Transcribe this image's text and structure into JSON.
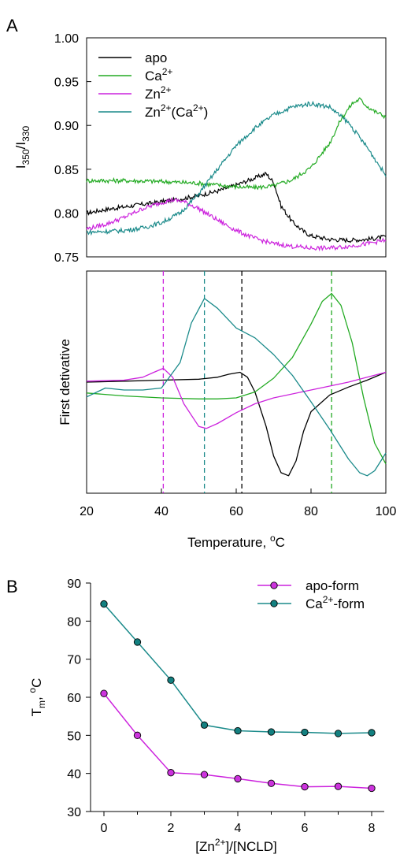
{
  "chart_data": [
    {
      "panel_label": "A",
      "type": "line",
      "ylabel": {
        "main": "I",
        "sub1": "350",
        "sep": "/I",
        "sub2": "330"
      },
      "ylim": [
        0.75,
        1.0
      ],
      "yticks": [
        "1.00",
        "0.95",
        "0.90",
        "0.85",
        "0.80",
        "0.75"
      ],
      "xlim": [
        20,
        100
      ],
      "legend_position": "top-left",
      "series": [
        {
          "name": "apo",
          "name_sup": "",
          "name_suffix": "",
          "color": "#000000",
          "x": [
            20,
            25,
            30,
            35,
            40,
            45,
            50,
            55,
            60,
            65,
            68,
            70,
            72,
            75,
            78,
            80,
            85,
            90,
            95,
            100
          ],
          "y": [
            0.8,
            0.804,
            0.807,
            0.81,
            0.813,
            0.816,
            0.82,
            0.825,
            0.832,
            0.84,
            0.845,
            0.835,
            0.808,
            0.79,
            0.779,
            0.774,
            0.77,
            0.769,
            0.77,
            0.773
          ]
        },
        {
          "name": "Ca",
          "name_sup": "2+",
          "name_suffix": "",
          "color": "#22aa22",
          "x": [
            20,
            30,
            40,
            50,
            60,
            65,
            70,
            75,
            80,
            85,
            88,
            91,
            93,
            95,
            97,
            100
          ],
          "y": [
            0.837,
            0.837,
            0.836,
            0.834,
            0.83,
            0.829,
            0.831,
            0.838,
            0.852,
            0.88,
            0.907,
            0.925,
            0.93,
            0.922,
            0.916,
            0.91
          ]
        },
        {
          "name": "Zn",
          "name_sup": "2+",
          "name_suffix": "",
          "color": "#cc22dd",
          "x": [
            20,
            25,
            30,
            35,
            40,
            43,
            46,
            50,
            55,
            60,
            65,
            70,
            75,
            80,
            85,
            90,
            95,
            100
          ],
          "y": [
            0.782,
            0.787,
            0.795,
            0.805,
            0.812,
            0.815,
            0.813,
            0.805,
            0.792,
            0.78,
            0.771,
            0.765,
            0.762,
            0.76,
            0.76,
            0.762,
            0.765,
            0.769
          ]
        },
        {
          "name": "Zn",
          "name_sup": "2+",
          "name_suffix": "(Ca",
          "name_sup2": "2+",
          "name_end": ")",
          "color": "#1a8a8a",
          "x": [
            20,
            25,
            30,
            35,
            40,
            45,
            50,
            55,
            60,
            65,
            70,
            75,
            80,
            85,
            90,
            95,
            100
          ],
          "y": [
            0.778,
            0.779,
            0.78,
            0.783,
            0.789,
            0.8,
            0.822,
            0.85,
            0.877,
            0.897,
            0.912,
            0.921,
            0.925,
            0.921,
            0.903,
            0.875,
            0.843
          ]
        }
      ]
    },
    {
      "panel_label": "",
      "type": "line",
      "ylabel": "First detivative",
      "xlabel_main": "Temperature, ",
      "xlabel_sup": "o",
      "xlabel_unit": "C",
      "xlim": [
        20,
        100
      ],
      "xticks": [
        "20",
        "40",
        "60",
        "80",
        "100"
      ],
      "ylim": [
        -1.0,
        1.0
      ],
      "vlines": [
        {
          "x": 40.5,
          "color": "#cc22dd"
        },
        {
          "x": 51.5,
          "color": "#1a8a8a"
        },
        {
          "x": 61.5,
          "color": "#000000"
        },
        {
          "x": 85.5,
          "color": "#22aa22"
        }
      ],
      "series": [
        {
          "name": "apo",
          "color": "#000000",
          "x": [
            20,
            30,
            40,
            50,
            55,
            58,
            61,
            63,
            65,
            68,
            70,
            72,
            74,
            76,
            78,
            80,
            85,
            90,
            95,
            100
          ],
          "y": [
            0.0,
            0.01,
            0.02,
            0.03,
            0.05,
            0.08,
            0.1,
            0.05,
            -0.1,
            -0.45,
            -0.75,
            -0.92,
            -0.95,
            -0.8,
            -0.5,
            -0.3,
            -0.13,
            -0.05,
            0.02,
            0.1
          ]
        },
        {
          "name": "Ca",
          "color": "#22aa22",
          "x": [
            20,
            30,
            40,
            50,
            55,
            60,
            65,
            70,
            75,
            80,
            83,
            85.5,
            88,
            91,
            94,
            97,
            100
          ],
          "y": [
            -0.11,
            -0.14,
            -0.16,
            -0.17,
            -0.17,
            -0.16,
            -0.1,
            0.04,
            0.25,
            0.59,
            0.82,
            0.9,
            0.78,
            0.4,
            -0.15,
            -0.62,
            -0.83
          ]
        },
        {
          "name": "Zn",
          "color": "#cc22dd",
          "x": [
            20,
            30,
            35,
            38,
            40.5,
            43,
            46,
            50,
            52,
            55,
            60,
            65,
            70,
            80,
            90,
            100
          ],
          "y": [
            0.01,
            0.02,
            0.05,
            0.1,
            0.14,
            0.05,
            -0.22,
            -0.45,
            -0.47,
            -0.42,
            -0.31,
            -0.22,
            -0.16,
            -0.08,
            0.0,
            0.1
          ]
        },
        {
          "name": "Zn(Ca)",
          "color": "#1a8a8a",
          "x": [
            20,
            25,
            30,
            35,
            40,
            45,
            48,
            51.5,
            55,
            60,
            65,
            70,
            75,
            80,
            85,
            90,
            93,
            95,
            97,
            100
          ],
          "y": [
            -0.15,
            -0.06,
            -0.08,
            -0.08,
            -0.06,
            0.2,
            0.6,
            0.85,
            0.75,
            0.55,
            0.45,
            0.28,
            0.07,
            -0.2,
            -0.48,
            -0.78,
            -0.92,
            -0.95,
            -0.9,
            -0.72
          ]
        }
      ]
    },
    {
      "panel_label": "B",
      "type": "line",
      "ylabel_main": "T",
      "ylabel_sub": "m",
      "ylabel_sep": ", ",
      "ylabel_sup": "o",
      "ylabel_unit": "C",
      "xlabel_pre": "[Zn",
      "xlabel_sup": "2+",
      "xlabel_post": "]/[NCLD]",
      "ylim": [
        30,
        90
      ],
      "yticks": [
        "90",
        "80",
        "70",
        "60",
        "50",
        "40",
        "30"
      ],
      "xlim": [
        0,
        8
      ],
      "xticks": [
        "0",
        "2",
        "4",
        "6",
        "8"
      ],
      "legend_position": "top-right",
      "series": [
        {
          "name": "apo-form",
          "name_sup": "",
          "name_suffix": "",
          "color": "#cc22dd",
          "marker_fill": "#cc33dd",
          "x": [
            0,
            1,
            2,
            3,
            4,
            5,
            6,
            7,
            8
          ],
          "y": [
            61.0,
            50.0,
            40.2,
            39.7,
            38.6,
            37.4,
            36.5,
            36.6,
            36.1
          ]
        },
        {
          "name": "Ca",
          "name_sup": "2+",
          "name_suffix": "-form",
          "color": "#1a8a8a",
          "marker_fill": "#138080",
          "x": [
            0,
            1,
            2,
            3,
            4,
            5,
            6,
            7,
            8
          ],
          "y": [
            84.5,
            74.5,
            64.5,
            52.7,
            51.2,
            50.9,
            50.8,
            50.5,
            50.7
          ]
        }
      ]
    }
  ]
}
